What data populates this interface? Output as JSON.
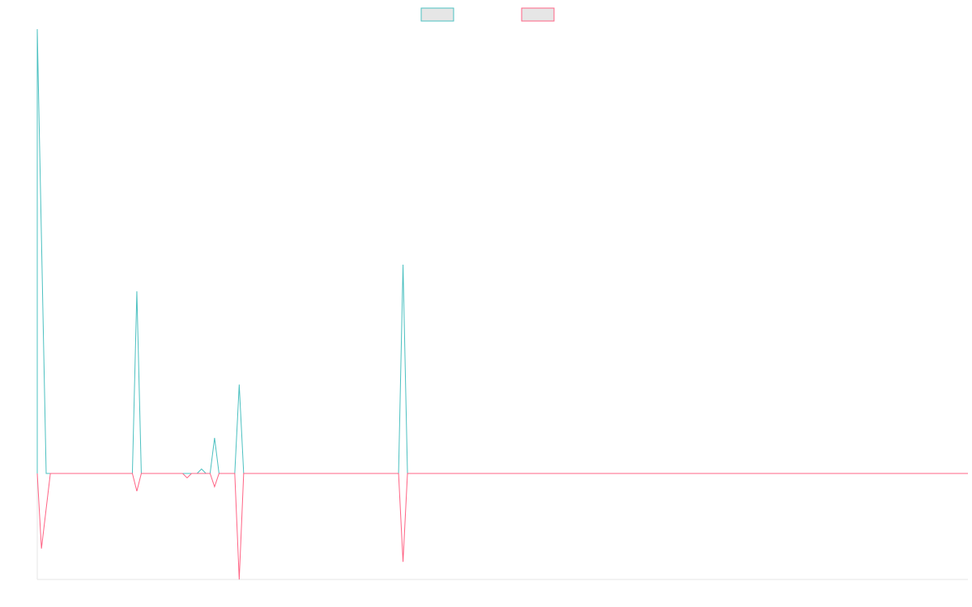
{
  "colors": {
    "background": "#ffffff",
    "series_a": "#4bc0c0",
    "series_b": "#ff6384",
    "legend_fill": "#e6e6e6",
    "axis": "#e6e6e6"
  },
  "chart_data": {
    "type": "line",
    "title": "",
    "xlabel": "",
    "ylabel": "",
    "grid": false,
    "legend": {
      "placement": "top-center",
      "entries": [
        {
          "label": "",
          "color": "#4bc0c0"
        },
        {
          "label": "",
          "color": "#ff6384"
        }
      ]
    },
    "x_range": [
      0,
      200
    ],
    "ylim": [
      -0.24,
      1.0
    ],
    "style": "mirrored-spikes",
    "series": [
      {
        "color": "#4bc0c0",
        "direction": "up",
        "spikes": [
          {
            "x": 0,
            "value": 1.0
          },
          {
            "x": 21.4,
            "value": 0.41
          },
          {
            "x": 35.3,
            "value": 0.01
          },
          {
            "x": 35.3,
            "value": 0.0
          },
          {
            "x": 35.3,
            "value": 0.0
          },
          {
            "x": 35.3,
            "value": 0.0
          },
          {
            "x": 35.3,
            "value": 0.0
          },
          {
            "x": 35.3,
            "value": 0.0
          },
          {
            "x": 35.3,
            "value": 0.0
          },
          {
            "x": 35.3,
            "value": 0.0
          },
          {
            "x": 35.3,
            "value": 0.0
          },
          {
            "x": 35.3,
            "value": 0.0
          },
          {
            "x": 35.3,
            "value": 0.0
          },
          {
            "x": 38.1,
            "value": 0.08
          },
          {
            "x": 43.4,
            "value": 0.2
          },
          {
            "x": 78.6,
            "value": 0.47
          }
        ]
      },
      {
        "color": "#ff6384",
        "direction": "down",
        "spikes": [
          {
            "x": 0.9,
            "value": -0.17
          },
          {
            "x": 21.4,
            "value": -0.04
          },
          {
            "x": 32.2,
            "value": -0.01
          },
          {
            "x": 38.1,
            "value": -0.03
          },
          {
            "x": 43.4,
            "value": -0.24
          },
          {
            "x": 78.6,
            "value": -0.2
          }
        ]
      }
    ]
  }
}
